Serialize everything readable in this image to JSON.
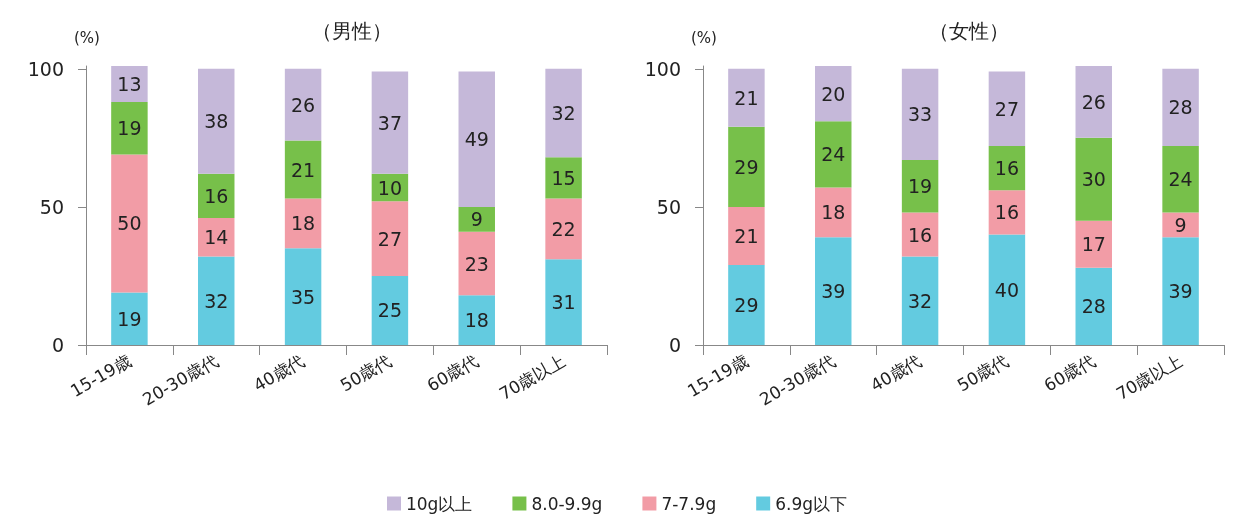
{
  "chart_data": [
    {
      "type": "bar",
      "title": "（男性）",
      "ylabel": "(%)",
      "stacked": true,
      "data_labels": true,
      "legend": "bottom",
      "grid": false,
      "categories": [
        "15-19歳",
        "20-30歳代",
        "40歳代",
        "50歳代",
        "60歳代",
        "70歳以上"
      ],
      "ylim": [
        0,
        101
      ],
      "yticks": [
        0,
        50,
        100
      ],
      "series": [
        {
          "name": "6.9g以下",
          "color": "#63cbe0",
          "values": [
            19,
            32,
            35,
            25,
            18,
            31
          ]
        },
        {
          "name": "7-7.9g",
          "color": "#f29ca6",
          "values": [
            50,
            14,
            18,
            27,
            23,
            22
          ]
        },
        {
          "name": "8.0-9.9g",
          "color": "#77c04a",
          "values": [
            19,
            16,
            21,
            10,
            9,
            15
          ]
        },
        {
          "name": "10g以上",
          "color": "#c5b8d9",
          "values": [
            13,
            38,
            26,
            37,
            49,
            32
          ]
        }
      ]
    },
    {
      "type": "bar",
      "title": "（女性）",
      "ylabel": "(%)",
      "stacked": true,
      "data_labels": true,
      "legend": "bottom",
      "grid": false,
      "categories": [
        "15-19歳",
        "20-30歳代",
        "40歳代",
        "50歳代",
        "60歳代",
        "70歳以上"
      ],
      "ylim": [
        0,
        101
      ],
      "yticks": [
        0,
        50,
        100
      ],
      "series": [
        {
          "name": "6.9g以下",
          "color": "#63cbe0",
          "values": [
            29,
            39,
            32,
            40,
            28,
            39
          ]
        },
        {
          "name": "7-7.9g",
          "color": "#f29ca6",
          "values": [
            21,
            18,
            16,
            16,
            17,
            9
          ]
        },
        {
          "name": "8.0-9.9g",
          "color": "#77c04a",
          "values": [
            29,
            24,
            19,
            16,
            30,
            24
          ]
        },
        {
          "name": "10g以上",
          "color": "#c5b8d9",
          "values": [
            21,
            20,
            33,
            27,
            26,
            28
          ]
        }
      ]
    }
  ]
}
